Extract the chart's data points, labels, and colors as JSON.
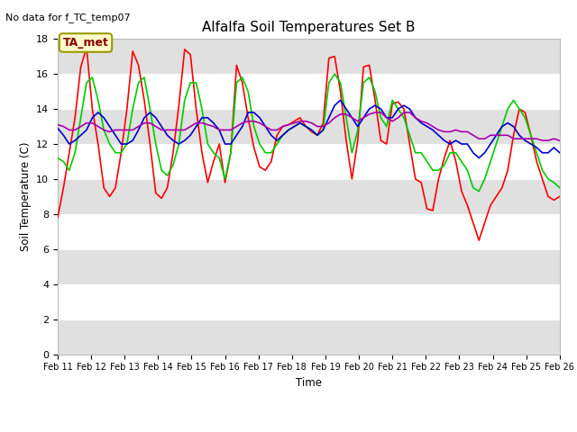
{
  "title": "Alfalfa Soil Temperatures Set B",
  "top_left_note": "No data for f_TC_temp07",
  "ylabel": "Soil Temperature (C)",
  "xlabel": "Time",
  "annotation_box": "TA_met",
  "ylim": [
    0,
    18
  ],
  "yticks": [
    0,
    2,
    4,
    6,
    8,
    10,
    12,
    14,
    16,
    18
  ],
  "xtick_labels": [
    "Feb 11",
    "Feb 12",
    "Feb 13",
    "Feb 14",
    "Feb 15",
    "Feb 16",
    "Feb 17",
    "Feb 18",
    "Feb 19",
    "Feb 20",
    "Feb 21",
    "Feb 22",
    "Feb 23",
    "Feb 24",
    "Feb 25",
    "Feb 26"
  ],
  "fig_bg_color": "#ffffff",
  "plot_bg_color": "#ffffff",
  "line_colors": {
    "-2cm": "#ff0000",
    "-8cm": "#00cc00",
    "-16cm": "#0000cc",
    "-32cm": "#aa00aa"
  },
  "band_light": "#ffffff",
  "band_dark": "#e0e0e0",
  "series": {
    "-2cm": [
      7.8,
      9.5,
      11.5,
      13.5,
      16.4,
      17.5,
      14.0,
      12.0,
      9.5,
      9.0,
      9.5,
      11.5,
      14.0,
      17.3,
      16.5,
      14.5,
      12.0,
      9.2,
      8.9,
      9.5,
      11.5,
      14.2,
      17.4,
      17.1,
      14.0,
      11.5,
      9.8,
      11.0,
      12.0,
      9.8,
      11.5,
      16.5,
      15.5,
      13.5,
      11.8,
      10.7,
      10.5,
      11.0,
      12.5,
      13.0,
      13.1,
      13.3,
      13.5,
      13.0,
      12.7,
      12.5,
      13.2,
      16.9,
      17.0,
      15.0,
      12.2,
      10.0,
      12.2,
      16.4,
      16.5,
      14.5,
      12.2,
      12.0,
      14.3,
      14.4,
      14.0,
      12.0,
      10.0,
      9.8,
      8.3,
      8.2,
      10.0,
      11.2,
      12.2,
      11.0,
      9.3,
      8.5,
      7.5,
      6.5,
      7.5,
      8.5,
      9.0,
      9.5,
      10.5,
      12.5,
      14.0,
      13.8,
      12.5,
      11.0,
      10.0,
      9.0,
      8.8,
      9.0
    ],
    "-8cm": [
      11.2,
      11.0,
      10.5,
      11.5,
      13.5,
      15.5,
      15.8,
      14.5,
      12.8,
      12.0,
      11.5,
      11.5,
      12.0,
      14.0,
      15.5,
      15.8,
      14.0,
      12.0,
      10.5,
      10.2,
      10.8,
      12.0,
      14.5,
      15.5,
      15.5,
      14.0,
      12.0,
      11.5,
      11.2,
      10.0,
      11.5,
      15.5,
      15.8,
      15.0,
      13.0,
      12.0,
      11.5,
      11.5,
      12.0,
      12.5,
      12.8,
      13.0,
      13.2,
      13.0,
      12.8,
      12.5,
      12.8,
      15.5,
      16.0,
      15.5,
      13.5,
      11.5,
      12.8,
      15.5,
      15.8,
      15.0,
      13.5,
      13.0,
      14.5,
      14.0,
      13.5,
      12.5,
      11.5,
      11.5,
      11.0,
      10.5,
      10.5,
      10.8,
      11.5,
      11.5,
      11.0,
      10.5,
      9.5,
      9.3,
      10.0,
      11.0,
      12.0,
      13.0,
      14.0,
      14.5,
      14.0,
      13.5,
      12.5,
      11.5,
      10.5,
      10.0,
      9.8,
      9.5
    ],
    "-16cm": [
      12.9,
      12.5,
      12.0,
      12.2,
      12.5,
      12.8,
      13.5,
      13.8,
      13.5,
      13.0,
      12.5,
      12.0,
      12.0,
      12.2,
      12.8,
      13.5,
      13.8,
      13.5,
      13.0,
      12.5,
      12.2,
      12.0,
      12.2,
      12.5,
      13.0,
      13.5,
      13.5,
      13.2,
      12.8,
      12.0,
      12.0,
      12.5,
      13.0,
      13.8,
      13.8,
      13.5,
      13.0,
      12.5,
      12.2,
      12.5,
      12.8,
      13.0,
      13.2,
      13.0,
      12.8,
      12.5,
      12.8,
      13.5,
      14.2,
      14.5,
      14.0,
      13.5,
      13.0,
      13.5,
      14.0,
      14.2,
      14.0,
      13.5,
      13.5,
      14.0,
      14.2,
      14.0,
      13.5,
      13.2,
      13.0,
      12.8,
      12.5,
      12.2,
      12.0,
      12.2,
      12.0,
      12.0,
      11.5,
      11.2,
      11.5,
      12.0,
      12.5,
      13.0,
      13.2,
      13.0,
      12.5,
      12.2,
      12.0,
      11.8,
      11.5,
      11.5,
      11.8,
      11.5
    ],
    "-32cm": [
      13.1,
      13.0,
      12.8,
      12.8,
      13.0,
      13.2,
      13.2,
      13.0,
      12.8,
      12.7,
      12.8,
      12.8,
      12.8,
      12.8,
      13.0,
      13.2,
      13.2,
      13.0,
      12.8,
      12.8,
      12.8,
      12.8,
      12.8,
      13.0,
      13.2,
      13.2,
      13.1,
      13.0,
      12.8,
      12.8,
      12.8,
      13.0,
      13.2,
      13.3,
      13.3,
      13.2,
      13.0,
      12.8,
      12.8,
      13.0,
      13.1,
      13.2,
      13.3,
      13.3,
      13.2,
      13.0,
      13.0,
      13.2,
      13.5,
      13.7,
      13.7,
      13.5,
      13.3,
      13.5,
      13.7,
      13.8,
      13.8,
      13.5,
      13.3,
      13.5,
      13.8,
      13.8,
      13.5,
      13.3,
      13.2,
      13.0,
      12.8,
      12.7,
      12.7,
      12.8,
      12.7,
      12.7,
      12.5,
      12.3,
      12.3,
      12.5,
      12.5,
      12.5,
      12.5,
      12.3,
      12.3,
      12.3,
      12.3,
      12.3,
      12.2,
      12.2,
      12.3,
      12.2
    ]
  }
}
